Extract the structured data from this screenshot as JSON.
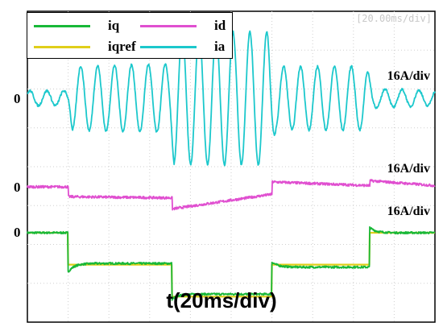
{
  "chart_data": {
    "type": "line",
    "title": "",
    "xlabel": "t(20ms/div)",
    "timebase_readout": "[20.00ms/div]",
    "xlim": [
      0,
      200
    ],
    "x_unit": "ms",
    "grid": true,
    "grid_style": "dotted",
    "legend_position": "top-left",
    "channels": [
      {
        "key": "ia",
        "zero_label": "0",
        "scale_label": "16A/div",
        "ylim": [
          -64,
          64
        ]
      },
      {
        "key": "id",
        "zero_label": "0",
        "scale_label": "16A/div",
        "ylim": [
          -64,
          64
        ]
      },
      {
        "key": "iq",
        "zero_label": "0",
        "scale_label": "16A/div",
        "ylim": [
          -64,
          64
        ]
      }
    ],
    "series": [
      {
        "name": "iq",
        "color": "#18b838",
        "channel": "iq",
        "kind": "step_response",
        "steps": [
          [
            0,
            0
          ],
          [
            20,
            -12.5
          ],
          [
            71,
            -25
          ],
          [
            120,
            -14
          ],
          [
            168,
            0
          ]
        ],
        "undershoot": -3.5,
        "recovery_tau_ms": 3,
        "noise": 0.8
      },
      {
        "name": "iqref",
        "color": "#e0cf1a",
        "channel": "iq",
        "kind": "step",
        "steps": [
          [
            0,
            0
          ],
          [
            20,
            -13
          ],
          [
            71,
            -26
          ],
          [
            120,
            -13
          ],
          [
            168,
            0
          ]
        ]
      },
      {
        "name": "id",
        "color": "#e04fd0",
        "channel": "id",
        "kind": "segments",
        "segments": [
          [
            0,
            20,
            0,
            0
          ],
          [
            20,
            71,
            -4,
            -4.5
          ],
          [
            71,
            120,
            -9,
            -3
          ],
          [
            120,
            168,
            2,
            0.5
          ],
          [
            168,
            200,
            2.5,
            0.5
          ]
        ],
        "noise": 1.0
      },
      {
        "name": "ia",
        "color": "#1cc8cc",
        "channel": "ia",
        "kind": "sine_envelope",
        "period_ms": 8.3,
        "envelope": [
          [
            0,
            3
          ],
          [
            20,
            3
          ],
          [
            22,
            13
          ],
          [
            70,
            14
          ],
          [
            72,
            27
          ],
          [
            118,
            27
          ],
          [
            122,
            13
          ],
          [
            166,
            13
          ],
          [
            170,
            4
          ],
          [
            200,
            3
          ]
        ],
        "noise": 0.9
      }
    ]
  },
  "legend": {
    "items": [
      {
        "name": "iq",
        "color": "#18b838"
      },
      {
        "name": "id",
        "color": "#e04fd0"
      },
      {
        "name": "iqref",
        "color": "#e0cf1a"
      },
      {
        "name": "ia",
        "color": "#1cc8cc"
      }
    ]
  }
}
